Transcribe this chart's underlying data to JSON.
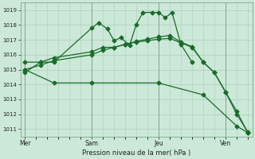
{
  "background_color": "#cce8d8",
  "grid_color": "#aacfba",
  "line_color": "#1a6b2a",
  "xlabel": "Pression niveau de la mer( hPa )",
  "ylim": [
    1010.5,
    1019.5
  ],
  "yticks": [
    1011,
    1012,
    1013,
    1014,
    1015,
    1016,
    1017,
    1018,
    1019
  ],
  "day_labels": [
    "Mer",
    "Sam",
    "Jeu",
    "Ven"
  ],
  "day_positions": [
    0,
    3,
    6,
    9
  ],
  "xlim": [
    -0.2,
    10.2
  ],
  "series1_x": [
    0,
    0.7,
    1.3,
    3.0,
    3.3,
    3.7,
    4.0,
    4.3,
    4.7,
    5.0,
    5.3,
    5.7,
    6.0,
    6.3,
    6.6,
    7.0,
    7.5
  ],
  "series1_y": [
    1014.8,
    1015.5,
    1015.5,
    1017.8,
    1018.15,
    1017.75,
    1016.95,
    1017.15,
    1016.65,
    1018.05,
    1018.85,
    1018.85,
    1018.85,
    1018.5,
    1018.85,
    1016.7,
    1015.5
  ],
  "series2_x": [
    0,
    0.7,
    1.3,
    3.0,
    3.5,
    4.0,
    4.5,
    5.0,
    5.5,
    6.0,
    6.5,
    7.0,
    7.5,
    8.0,
    8.5,
    9.0,
    9.5,
    10.0
  ],
  "series2_y": [
    1015.5,
    1015.5,
    1015.8,
    1016.2,
    1016.5,
    1016.5,
    1016.7,
    1016.9,
    1017.05,
    1017.2,
    1017.3,
    1016.85,
    1016.55,
    1015.5,
    1014.8,
    1013.5,
    1012.2,
    1010.75
  ],
  "series3_x": [
    0,
    0.7,
    1.3,
    3.0,
    3.5,
    4.0,
    4.5,
    5.0,
    5.5,
    6.0,
    6.5,
    7.0,
    7.5,
    8.0,
    8.5,
    9.0,
    9.5,
    10.0
  ],
  "series3_y": [
    1015.0,
    1015.3,
    1015.6,
    1016.0,
    1016.3,
    1016.5,
    1016.7,
    1016.85,
    1016.95,
    1017.05,
    1017.1,
    1016.8,
    1016.5,
    1015.5,
    1014.8,
    1013.5,
    1012.0,
    1010.8
  ],
  "series4_x": [
    0,
    1.3,
    3.0,
    6.0,
    8.0,
    9.5,
    10.0
  ],
  "series4_y": [
    1015.0,
    1014.1,
    1014.1,
    1014.1,
    1013.3,
    1011.2,
    1010.75
  ]
}
